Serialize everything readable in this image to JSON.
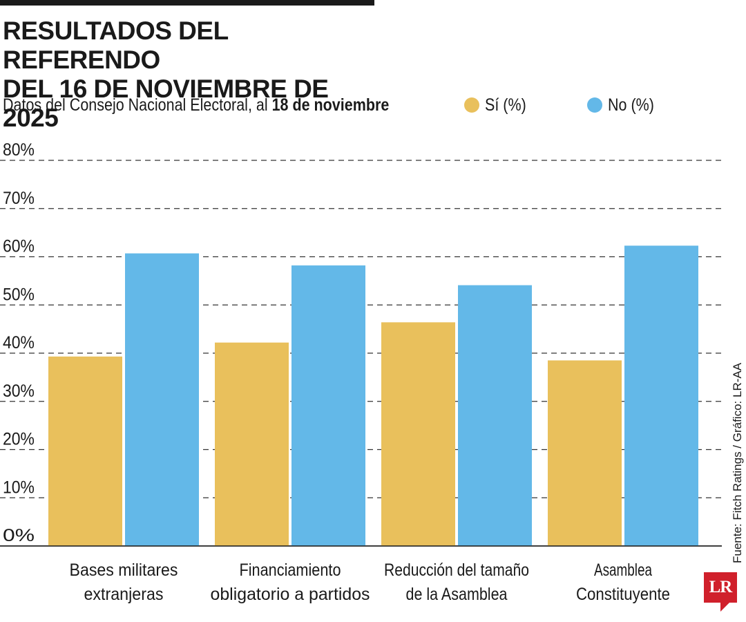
{
  "header": {
    "title_line1": "RESULTADOS DEL REFERENDO",
    "title_line2": "DEL 16 DE NOVIEMBRE DE 2025",
    "subtitle_prefix": "Datos del Consejo Nacional Electoral, al ",
    "subtitle_date": "18 de noviembre"
  },
  "source": "Fuente: Fitch Ratings / Gráfico: LR-AA",
  "logo_text": "LR",
  "colors": {
    "si": "#E9C05C",
    "no": "#63B8E8",
    "grid": "#333333"
  },
  "chart_data": {
    "type": "bar",
    "title": "RESULTADOS DEL REFERENDO DEL 16 DE NOVIEMBRE DE 2025",
    "xlabel": "",
    "ylabel": "",
    "ylim": [
      0,
      80
    ],
    "yticks": [
      0,
      10,
      20,
      30,
      40,
      50,
      60,
      70,
      80
    ],
    "ytick_labels": [
      "0%",
      "10%",
      "20%",
      "30%",
      "40%",
      "50%",
      "60%",
      "70%",
      "80%"
    ],
    "grid": true,
    "legend_position": "top-right",
    "categories": [
      [
        "Bases militares",
        "extranjeras"
      ],
      [
        "Financiamiento",
        "obligatorio a partidos"
      ],
      [
        "Reducción del tamaño",
        "de la Asamblea"
      ],
      [
        "Asamblea",
        "Constituyente"
      ]
    ],
    "series": [
      {
        "name": "Sí (%)",
        "values": [
          39.3,
          42.2,
          46.4,
          38.5
        ]
      },
      {
        "name": "No (%)",
        "values": [
          60.7,
          58.2,
          54.1,
          62.3
        ]
      }
    ]
  }
}
